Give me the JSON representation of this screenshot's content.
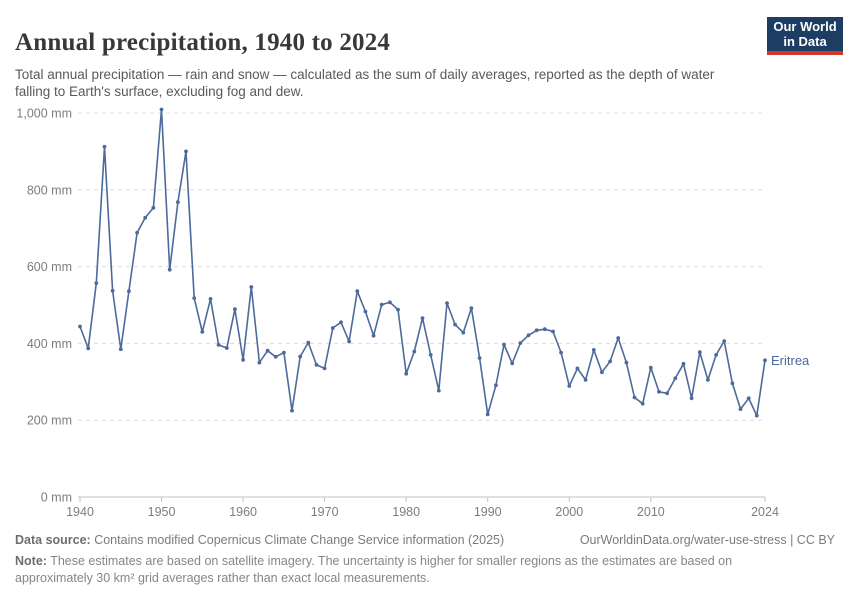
{
  "header": {
    "title": "Annual precipitation, 1940 to 2024",
    "subtitle": "Total annual precipitation — rain and snow — calculated as the sum of daily averages, reported as the depth of water falling to Earth's surface, excluding fog and dew.",
    "logo": {
      "line1": "Our World",
      "line2": "in Data"
    }
  },
  "chart_data": {
    "type": "line",
    "title": "Annual precipitation, 1940 to 2024",
    "entity": "Eritrea",
    "unit": "mm",
    "xlim": [
      1940,
      2024
    ],
    "ylim": [
      0,
      1000
    ],
    "grid": true,
    "legend_position": "end-of-line label",
    "colors": {
      "line": "#4c6a9c",
      "grid": "#dcdcdc",
      "axis": "#c0c0c0",
      "tick_label": "#7d7d7d"
    },
    "y_ticks": [
      {
        "v": 0,
        "label": "0 mm"
      },
      {
        "v": 200,
        "label": "200 mm"
      },
      {
        "v": 400,
        "label": "400 mm"
      },
      {
        "v": 600,
        "label": "600 mm"
      },
      {
        "v": 800,
        "label": "800 mm"
      },
      {
        "v": 1000,
        "label": "1,000 mm"
      }
    ],
    "x_ticks": [
      {
        "v": 1940,
        "label": "1940"
      },
      {
        "v": 1950,
        "label": "1950"
      },
      {
        "v": 1960,
        "label": "1960"
      },
      {
        "v": 1970,
        "label": "1970"
      },
      {
        "v": 1980,
        "label": "1980"
      },
      {
        "v": 1990,
        "label": "1990"
      },
      {
        "v": 2000,
        "label": "2000"
      },
      {
        "v": 2010,
        "label": "2010"
      },
      {
        "v": 2024,
        "label": "2024"
      }
    ],
    "x": [
      1940,
      1941,
      1942,
      1943,
      1944,
      1945,
      1946,
      1947,
      1948,
      1949,
      1950,
      1951,
      1952,
      1953,
      1954,
      1955,
      1956,
      1957,
      1958,
      1959,
      1960,
      1961,
      1962,
      1963,
      1964,
      1965,
      1966,
      1967,
      1968,
      1969,
      1970,
      1971,
      1972,
      1973,
      1974,
      1975,
      1976,
      1977,
      1978,
      1979,
      1980,
      1981,
      1982,
      1983,
      1984,
      1985,
      1986,
      1987,
      1988,
      1989,
      1990,
      1991,
      1992,
      1993,
      1994,
      1995,
      1996,
      1997,
      1998,
      1999,
      2000,
      2001,
      2002,
      2003,
      2004,
      2005,
      2006,
      2007,
      2008,
      2009,
      2010,
      2011,
      2012,
      2013,
      2014,
      2015,
      2016,
      2017,
      2018,
      2019,
      2020,
      2021,
      2022,
      2023,
      2024
    ],
    "series": [
      {
        "name": "Eritrea",
        "values": [
          444,
          387,
          557,
          912,
          537,
          385,
          536,
          688,
          727,
          753,
          1009,
          592,
          768,
          900,
          518,
          430,
          516,
          396,
          388,
          489,
          357,
          547,
          350,
          381,
          365,
          376,
          225,
          366,
          402,
          344,
          335,
          440,
          455,
          405,
          536,
          483,
          420,
          501,
          507,
          488,
          321,
          379,
          466,
          370,
          277,
          505,
          449,
          428,
          492,
          362,
          215,
          291,
          397,
          348,
          401,
          421,
          434,
          437,
          431,
          376,
          289,
          335,
          305,
          383,
          325,
          353,
          414,
          350,
          259,
          243,
          337,
          274,
          270,
          309,
          347,
          257,
          377,
          305,
          370,
          406,
          296,
          229,
          257,
          212,
          356
        ]
      }
    ]
  },
  "footer": {
    "data_source_label": "Data source:",
    "data_source_text": " Contains modified Copernicus Climate Change Service information (2025)",
    "link_text": "OurWorldinData.org/water-use-stress | CC BY",
    "note_label": "Note:",
    "note_text": " These estimates are based on satellite imagery. The uncertainty is higher for smaller regions as the estimates are based on approximately 30 km² grid averages rather than exact local measurements."
  }
}
